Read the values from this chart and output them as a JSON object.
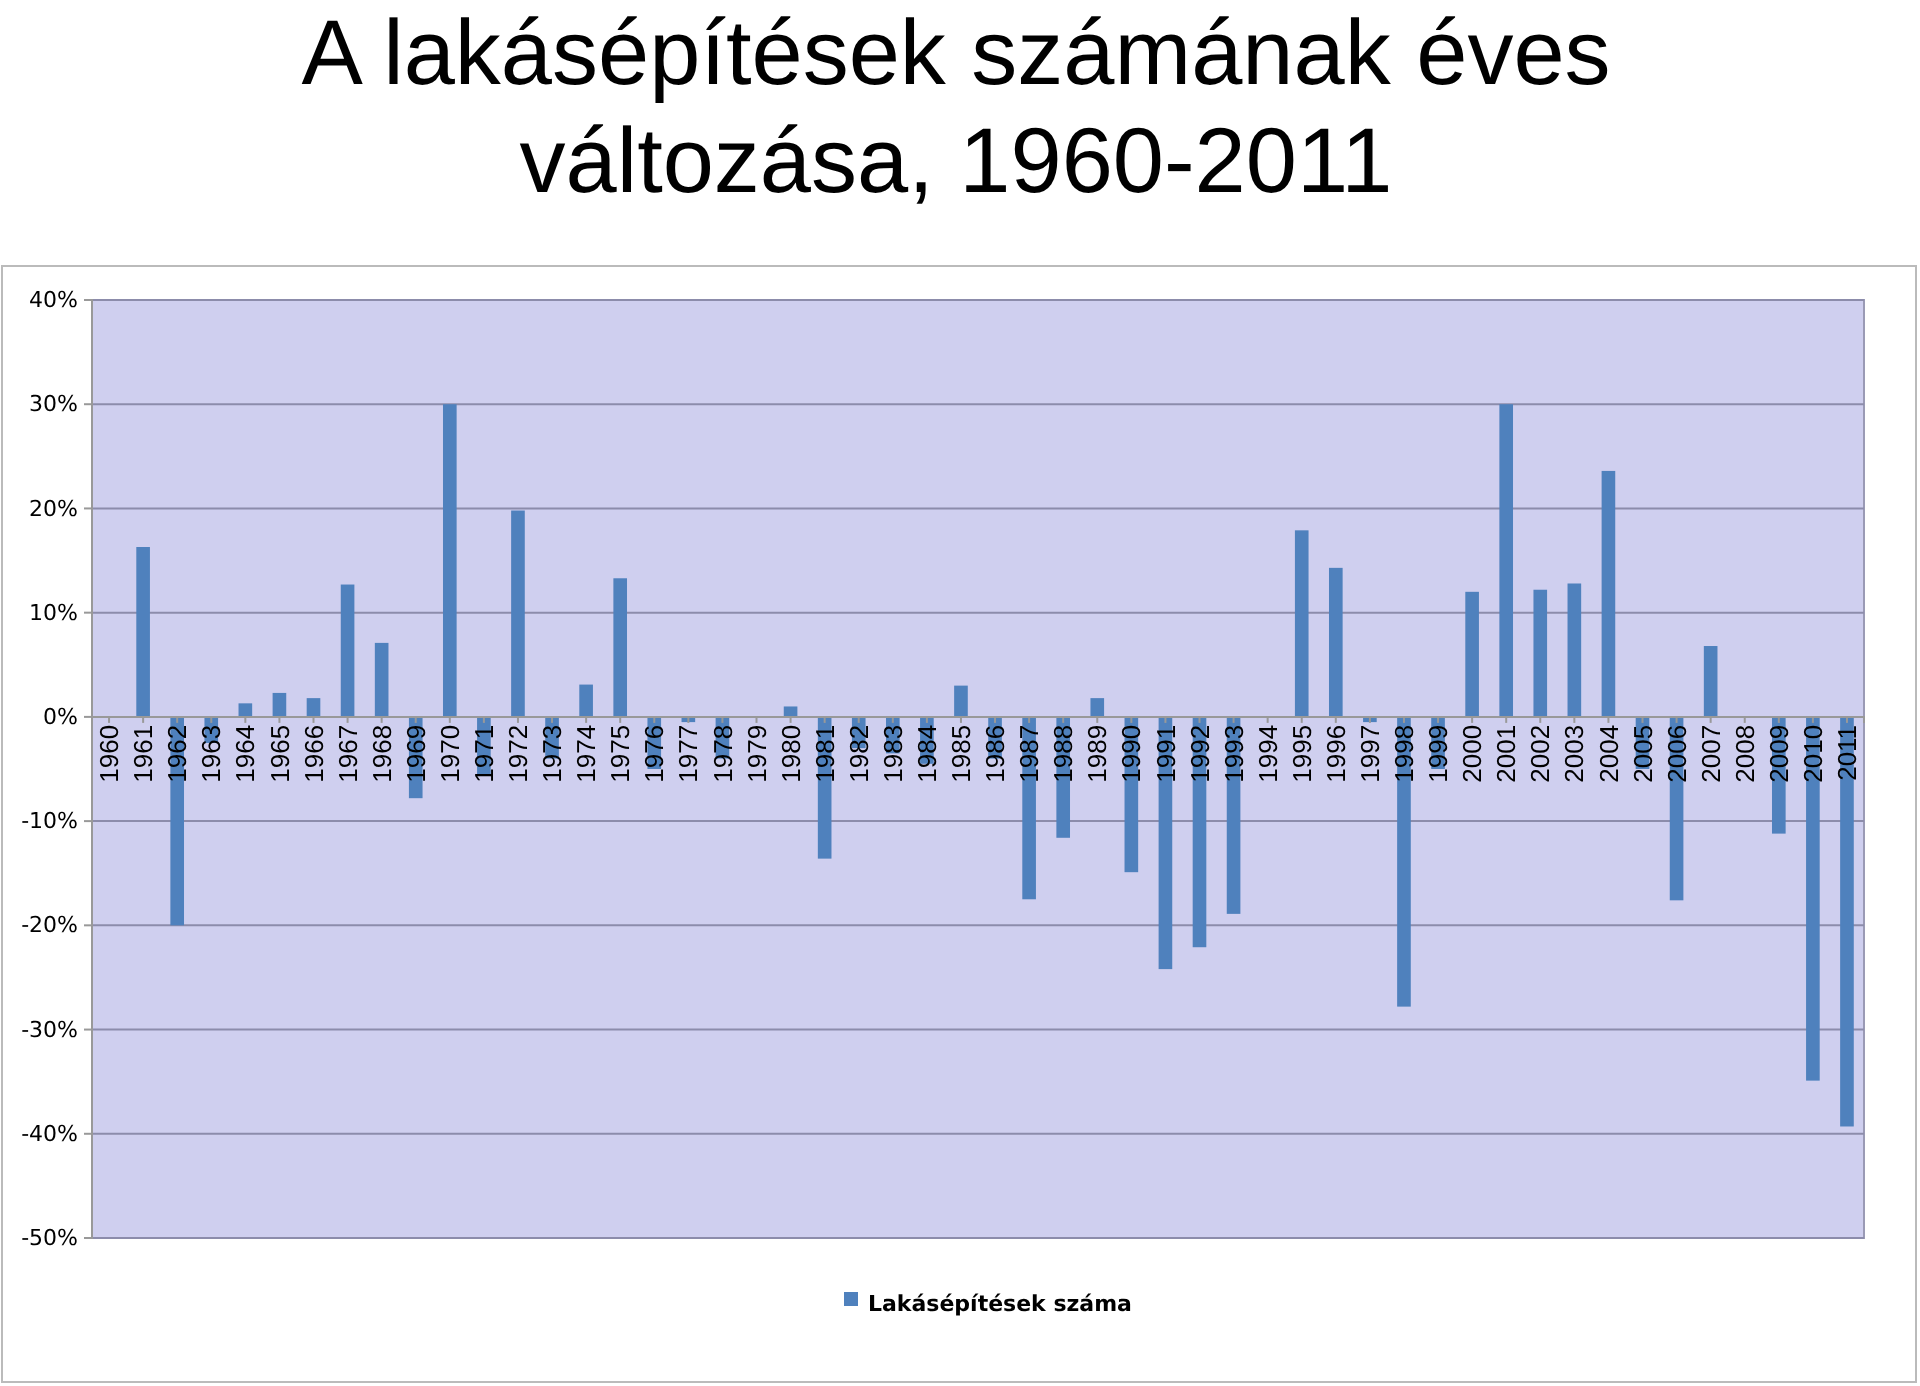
{
  "chart_data": {
    "type": "bar",
    "title": "A lakásépítések számának éves változása, 1960-2011",
    "categories": [
      "1960",
      "1961",
      "1962",
      "1963",
      "1964",
      "1965",
      "1966",
      "1967",
      "1968",
      "1969",
      "1970",
      "1971",
      "1972",
      "1973",
      "1974",
      "1975",
      "1976",
      "1977",
      "1978",
      "1979",
      "1980",
      "1981",
      "1982",
      "1983",
      "1984",
      "1985",
      "1986",
      "1987",
      "1988",
      "1989",
      "1990",
      "1991",
      "1992",
      "1993",
      "1994",
      "1995",
      "1996",
      "1997",
      "1998",
      "1999",
      "2000",
      "2001",
      "2002",
      "2003",
      "2004",
      "2005",
      "2006",
      "2007",
      "2008",
      "2009",
      "2010",
      "2011"
    ],
    "series": [
      {
        "name": "Lakásépítések száma",
        "color": "#4f81bd",
        "values": [
          0,
          16.3,
          -20,
          -2.5,
          1.3,
          2.3,
          1.8,
          12.7,
          7.1,
          -7.8,
          30,
          -5.5,
          19.8,
          -4,
          3.1,
          13.3,
          -5,
          -0.5,
          -4,
          null,
          1,
          -13.6,
          -3,
          -3.5,
          -4.5,
          3,
          -4,
          -17.5,
          -11.6,
          1.8,
          -14.9,
          -24.2,
          -22.1,
          -18.9,
          null,
          17.9,
          14.3,
          -0.5,
          -27.8,
          -5,
          12,
          30,
          12.2,
          12.8,
          23.6,
          -5,
          -17.6,
          6.8,
          null,
          -11.2,
          -34.9,
          -39.3
        ]
      }
    ],
    "ylim": [
      -50,
      40
    ],
    "yticks": [
      {
        "value": -50,
        "label": "-50%"
      },
      {
        "value": -40,
        "label": "-40%"
      },
      {
        "value": -30,
        "label": "-30%"
      },
      {
        "value": -20,
        "label": "-20%"
      },
      {
        "value": -10,
        "label": "-10%"
      },
      {
        "value": 0,
        "label": "0%"
      },
      {
        "value": 10,
        "label": "10%"
      },
      {
        "value": 20,
        "label": "20%"
      },
      {
        "value": 30,
        "label": "30%"
      },
      {
        "value": 40,
        "label": "40%"
      }
    ],
    "grid": "y",
    "legend": "bottom"
  }
}
